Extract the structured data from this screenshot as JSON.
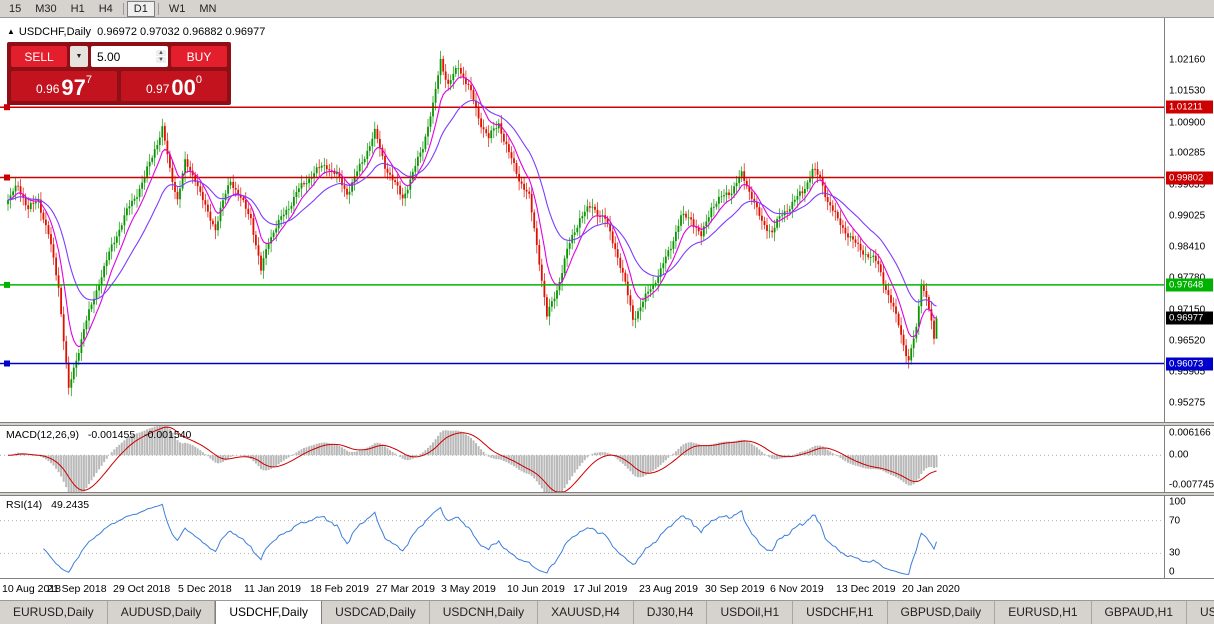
{
  "icons": {
    "collapse": "▲",
    "dropdown": "▼",
    "spin_up": "▲",
    "spin_down": "▼"
  },
  "toolbar": {
    "timeframes": [
      {
        "label": "15",
        "active": false,
        "sep_after": false
      },
      {
        "label": "M30",
        "active": false,
        "sep_after": false
      },
      {
        "label": "H1",
        "active": false,
        "sep_after": false
      },
      {
        "label": "H4",
        "active": false,
        "sep_after": true
      },
      {
        "label": "D1",
        "active": true,
        "sep_after": true
      },
      {
        "label": "W1",
        "active": false,
        "sep_after": false
      },
      {
        "label": "MN",
        "active": false,
        "sep_after": false
      }
    ]
  },
  "chart": {
    "title": {
      "symbol": "USDCHF,Daily",
      "ohlc": "0.96972 0.97032 0.96882 0.96977"
    },
    "trade_panel": {
      "sell_label": "SELL",
      "buy_label": "BUY",
      "volume": "5.00",
      "sell_price": {
        "prefix": "0.96",
        "big": "97",
        "sup": "7"
      },
      "buy_price": {
        "prefix": "0.97",
        "big": "00",
        "sup": "0"
      }
    },
    "current_price_label": "0.96977",
    "chart_data": {
      "type": "candlestick",
      "symbol": "USDCHF",
      "timeframe": "Daily",
      "n_candles": 368,
      "colors": {
        "up": "#089600",
        "down": "#e01000"
      },
      "current_price_label_bg": "#000000",
      "y_axis_ticks": [
        "1.02160",
        "1.01530",
        "1.00900",
        "1.00285",
        "0.99655",
        "0.99025",
        "0.98410",
        "0.97780",
        "0.97150",
        "0.96520",
        "0.95905",
        "0.95275"
      ],
      "price_range": {
        "top": 1.03,
        "bottom": 0.949
      },
      "x_labels": [
        "10 Aug 2018",
        "21 Sep 2018",
        "29 Oct 2018",
        "5 Dec 2018",
        "11 Jan 2019",
        "18 Feb 2019",
        "27 Mar 2019",
        "3 May 2019",
        "10 Jun 2019",
        "17 Jul 2019",
        "23 Aug 2019",
        "30 Sep 2019",
        "6 Nov 2019",
        "13 Dec 2019",
        "20 Jan 2020"
      ],
      "x_label_indices": [
        0,
        26,
        52,
        78,
        104,
        130,
        156,
        182,
        208,
        234,
        260,
        286,
        312,
        338,
        364
      ],
      "last_candle": {
        "open": 0.96972,
        "high": 0.97032,
        "low": 0.96882,
        "close": 0.96977
      },
      "current_price": 0.96977,
      "levels": [
        {
          "price": 1.01211,
          "label": "1.01211",
          "color": "#cc0000"
        },
        {
          "price": 0.99802,
          "label": "0.99802",
          "color": "#cc0000"
        },
        {
          "price": 0.97648,
          "label": "0.97648",
          "color": "#00b300"
        },
        {
          "price": 0.96073,
          "label": "0.96073",
          "color": "#0000cc"
        }
      ],
      "moving_averages": [
        {
          "period": 8,
          "color": "#e100e1"
        },
        {
          "period": 24,
          "color": "#7d3cff"
        }
      ],
      "price_path_anchors": [
        [
          0,
          0.993
        ],
        [
          4,
          0.996
        ],
        [
          8,
          0.9915
        ],
        [
          12,
          0.994
        ],
        [
          16,
          0.987
        ],
        [
          20,
          0.976
        ],
        [
          24,
          0.9548
        ],
        [
          26,
          0.959
        ],
        [
          30,
          0.968
        ],
        [
          36,
          0.9775
        ],
        [
          42,
          0.985
        ],
        [
          48,
          0.992
        ],
        [
          54,
          0.9985
        ],
        [
          58,
          1.004
        ],
        [
          61,
          1.0075
        ],
        [
          64,
          0.999
        ],
        [
          67,
          0.9935
        ],
        [
          70,
          1.001
        ],
        [
          74,
          0.9985
        ],
        [
          78,
          0.992
        ],
        [
          82,
          0.9875
        ],
        [
          88,
          0.9975
        ],
        [
          92,
          0.994
        ],
        [
          96,
          0.9905
        ],
        [
          100,
          0.979
        ],
        [
          103,
          0.985
        ],
        [
          108,
          0.9895
        ],
        [
          114,
          0.9955
        ],
        [
          120,
          0.9985
        ],
        [
          126,
          1.0
        ],
        [
          130,
          0.9985
        ],
        [
          134,
          0.9955
        ],
        [
          140,
          1.001
        ],
        [
          145,
          1.0065
        ],
        [
          149,
          1.0005
        ],
        [
          153,
          0.997
        ],
        [
          156,
          0.9945
        ],
        [
          160,
          0.9985
        ],
        [
          164,
          1.004
        ],
        [
          168,
          1.012
        ],
        [
          171,
          1.022
        ],
        [
          174,
          1.017
        ],
        [
          178,
          1.0205
        ],
        [
          182,
          1.016
        ],
        [
          186,
          1.0095
        ],
        [
          190,
          1.006
        ],
        [
          194,
          1.0095
        ],
        [
          198,
          1.003
        ],
        [
          202,
          0.9975
        ],
        [
          206,
          0.9935
        ],
        [
          210,
          0.9815
        ],
        [
          213,
          0.9705
        ],
        [
          217,
          0.976
        ],
        [
          221,
          0.983
        ],
        [
          226,
          0.9895
        ],
        [
          231,
          0.9925
        ],
        [
          236,
          0.99
        ],
        [
          240,
          0.984
        ],
        [
          244,
          0.976
        ],
        [
          247,
          0.9695
        ],
        [
          250,
          0.972
        ],
        [
          254,
          0.9765
        ],
        [
          258,
          0.9795
        ],
        [
          262,
          0.984
        ],
        [
          266,
          0.9895
        ],
        [
          270,
          0.99
        ],
        [
          274,
          0.9865
        ],
        [
          278,
          0.9925
        ],
        [
          282,
          0.9935
        ],
        [
          286,
          0.995
        ],
        [
          290,
          0.9985
        ],
        [
          294,
          0.995
        ],
        [
          298,
          0.989
        ],
        [
          302,
          0.987
        ],
        [
          306,
          0.99
        ],
        [
          310,
          0.993
        ],
        [
          314,
          0.9955
        ],
        [
          318,
          1.0
        ],
        [
          321,
          0.9975
        ],
        [
          324,
          0.993
        ],
        [
          328,
          0.989
        ],
        [
          332,
          0.987
        ],
        [
          336,
          0.9845
        ],
        [
          340,
          0.9825
        ],
        [
          344,
          0.98
        ],
        [
          348,
          0.974
        ],
        [
          352,
          0.969
        ],
        [
          356,
          0.9615
        ],
        [
          359,
          0.968
        ],
        [
          361,
          0.9765
        ],
        [
          363,
          0.974
        ],
        [
          365,
          0.969
        ],
        [
          366,
          0.9655
        ],
        [
          367,
          0.96977
        ]
      ],
      "indicators": {
        "macd": {
          "label": "MACD(12,26,9)",
          "value_main": "-0.001455",
          "value_signal": "-0.001540",
          "axis": {
            "max": "0.006166",
            "zero": "0.00",
            "min": "-0.007745"
          },
          "histogram_color": "#b9b9b9",
          "signal_color": "#cc0000"
        },
        "rsi": {
          "label": "RSI(14)",
          "value": "49.2435",
          "levels": [
            100,
            70,
            30,
            0
          ],
          "color": "#3d7edb"
        }
      }
    }
  },
  "tabs": [
    {
      "label": "EURUSD,Daily",
      "active": false
    },
    {
      "label": "AUDUSD,Daily",
      "active": false
    },
    {
      "label": "USDCHF,Daily",
      "active": true
    },
    {
      "label": "USDCAD,Daily",
      "active": false
    },
    {
      "label": "USDCNH,Daily",
      "active": false
    },
    {
      "label": "XAUUSD,H4",
      "active": false
    },
    {
      "label": "DJ30,H4",
      "active": false
    },
    {
      "label": "USDOil,H1",
      "active": false
    },
    {
      "label": "USDCHF,H1",
      "active": false
    },
    {
      "label": "GBPUSD,Daily",
      "active": false
    },
    {
      "label": "EURUSD,H1",
      "active": false
    },
    {
      "label": "GBPAUD,H1",
      "active": false
    },
    {
      "label": "USD",
      "active": false
    }
  ]
}
